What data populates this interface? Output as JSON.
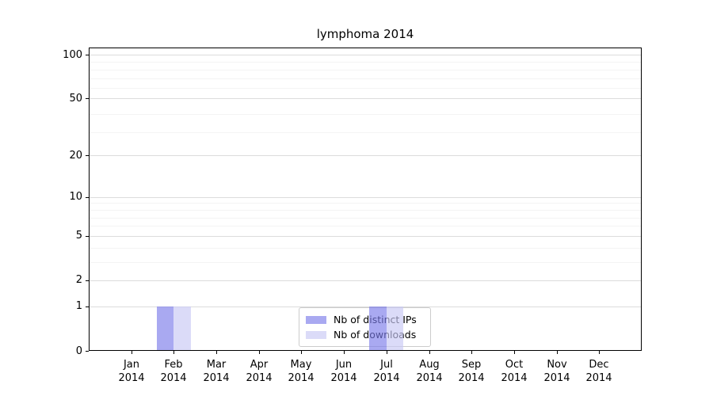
{
  "chart_data": {
    "type": "bar",
    "title": "lymphoma 2014",
    "categories": [
      "Jan",
      "Feb",
      "Mar",
      "Apr",
      "May",
      "Jun",
      "Jul",
      "Aug",
      "Sep",
      "Oct",
      "Nov",
      "Dec"
    ],
    "category_year": "2014",
    "series": [
      {
        "name": "Nb of distinct IPs",
        "legend_color": "#a9a9f1",
        "fill_color": "rgba(123,123,233,0.65)",
        "values": [
          0,
          1,
          0,
          0,
          0,
          0,
          1,
          0,
          0,
          0,
          0,
          0
        ]
      },
      {
        "name": "Nb of downloads",
        "legend_color": "#dbdbf8",
        "fill_color": "rgba(200,200,244,0.65)",
        "values": [
          0,
          1,
          0,
          0,
          0,
          0,
          1,
          0,
          0,
          0,
          0,
          0
        ]
      }
    ],
    "xlabel": "",
    "ylabel": "",
    "y_axis": {
      "ticks": [
        0,
        1,
        2,
        5,
        10,
        20,
        50,
        100
      ],
      "minor_gridlines": [
        3,
        4,
        6,
        7,
        8,
        9,
        29,
        39,
        59,
        69,
        79,
        89
      ],
      "scale": "log10(value+1)",
      "ylim": [
        0,
        112
      ]
    },
    "grid": true,
    "legend_position": "bottom-center",
    "colors": {
      "major_gridline": "#dcdcdc",
      "minor_gridline": "#f4f4f4",
      "axis": "#000000",
      "background": "#ffffff"
    }
  }
}
